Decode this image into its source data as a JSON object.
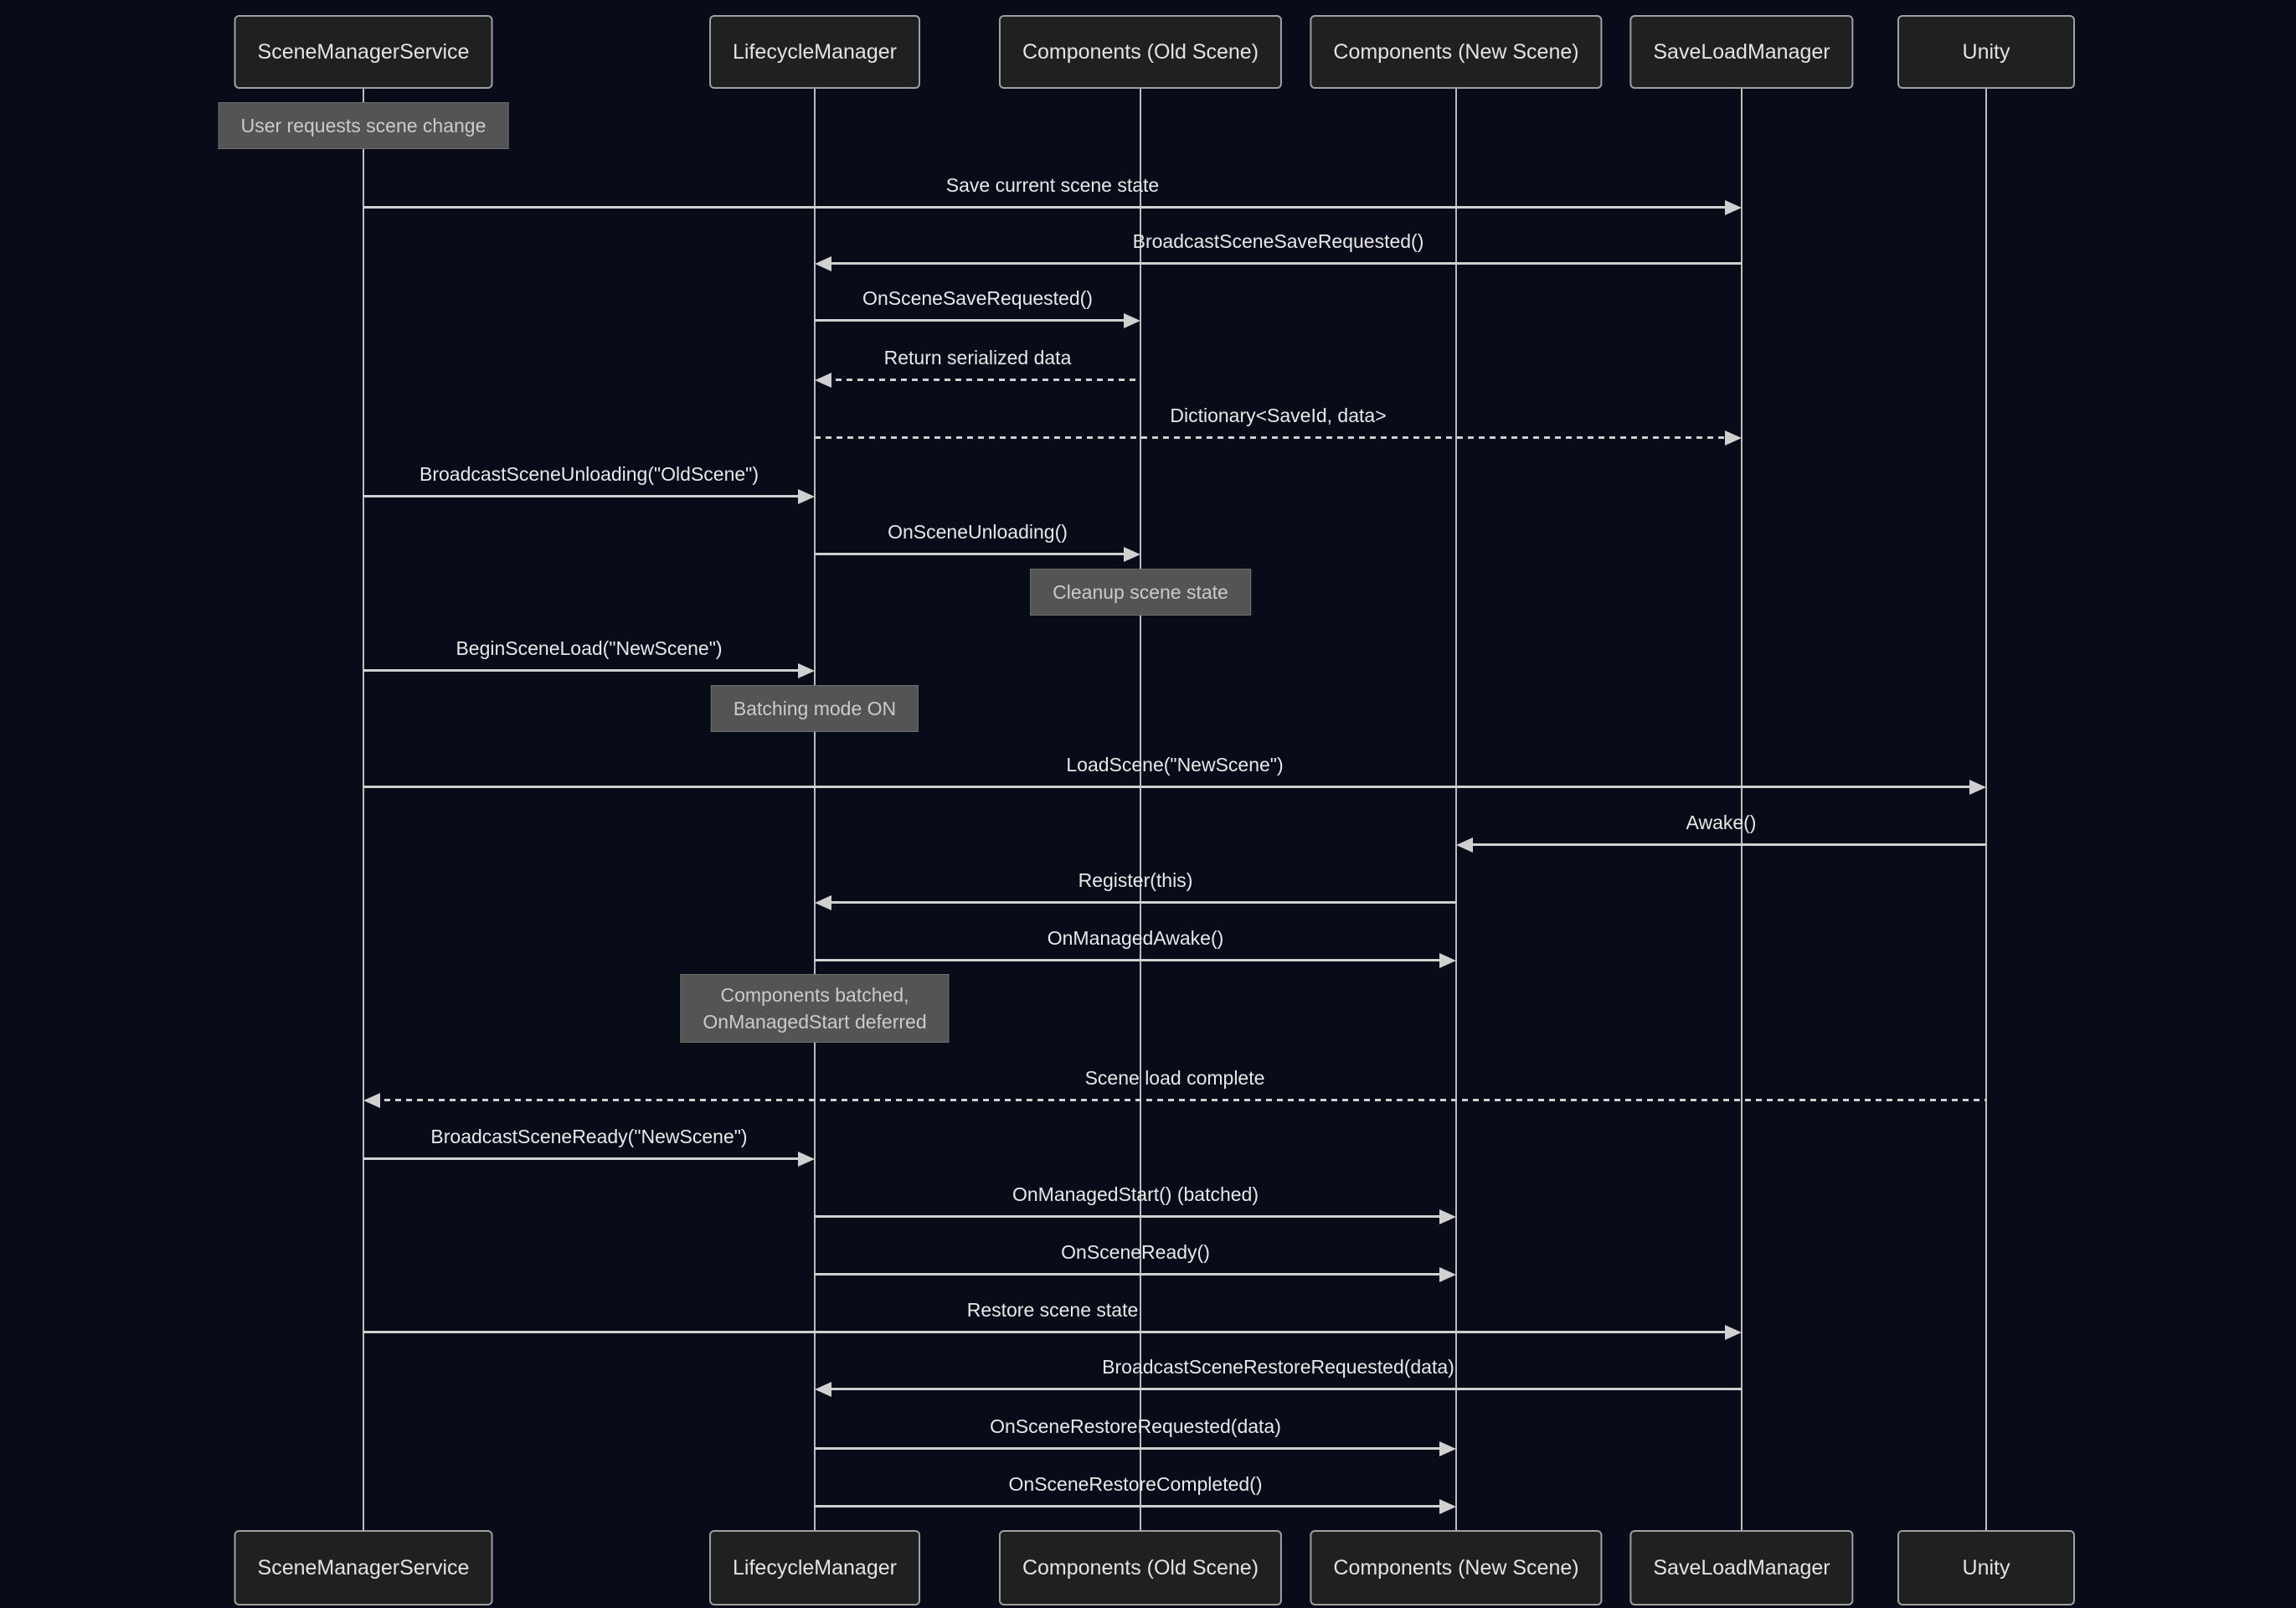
{
  "colors": {
    "bg": "#080c18",
    "actor-fill": "#1f2121",
    "actor-border": "#a0a0a0",
    "actor-text": "#e3e3e3",
    "note-fill": "#545454",
    "note-border": "#6f6f6f",
    "note-text": "#cbcbcb",
    "line": "#d0d0d0",
    "line-soft": "#bdbdbd",
    "msg-text": "#e8e8e8"
  },
  "participants": [
    {
      "id": "SceneManagerService",
      "label": "SceneManagerService"
    },
    {
      "id": "LifecycleManager",
      "label": "LifecycleManager"
    },
    {
      "id": "ComponentsOld",
      "label": "Components (Old Scene)"
    },
    {
      "id": "ComponentsNew",
      "label": "Components (New Scene)"
    },
    {
      "id": "SaveLoadManager",
      "label": "SaveLoadManager"
    },
    {
      "id": "Unity",
      "label": "Unity"
    }
  ],
  "sequence": [
    {
      "kind": "note",
      "over": "SceneManagerService",
      "label": "User requests scene change"
    },
    {
      "kind": "message",
      "from": "SceneManagerService",
      "to": "SaveLoadManager",
      "line": "solid",
      "label": "Save current scene state"
    },
    {
      "kind": "message",
      "from": "SaveLoadManager",
      "to": "LifecycleManager",
      "line": "solid",
      "label": "BroadcastSceneSaveRequested()"
    },
    {
      "kind": "message",
      "from": "LifecycleManager",
      "to": "ComponentsOld",
      "line": "solid",
      "label": "OnSceneSaveRequested()"
    },
    {
      "kind": "message",
      "from": "ComponentsOld",
      "to": "LifecycleManager",
      "line": "dashed",
      "label": "Return serialized data"
    },
    {
      "kind": "message",
      "from": "LifecycleManager",
      "to": "SaveLoadManager",
      "line": "dashed",
      "label": "Dictionary<SaveId, data>"
    },
    {
      "kind": "message",
      "from": "SceneManagerService",
      "to": "LifecycleManager",
      "line": "solid",
      "label": "BroadcastSceneUnloading(\"OldScene\")"
    },
    {
      "kind": "message",
      "from": "LifecycleManager",
      "to": "ComponentsOld",
      "line": "solid",
      "label": "OnSceneUnloading()"
    },
    {
      "kind": "note",
      "over": "ComponentsOld",
      "label": "Cleanup scene state"
    },
    {
      "kind": "message",
      "from": "SceneManagerService",
      "to": "LifecycleManager",
      "line": "solid",
      "label": "BeginSceneLoad(\"NewScene\")"
    },
    {
      "kind": "note",
      "over": "LifecycleManager",
      "label": "Batching mode ON"
    },
    {
      "kind": "message",
      "from": "SceneManagerService",
      "to": "Unity",
      "line": "solid",
      "label": "LoadScene(\"NewScene\")"
    },
    {
      "kind": "message",
      "from": "Unity",
      "to": "ComponentsNew",
      "line": "solid",
      "label": "Awake()"
    },
    {
      "kind": "message",
      "from": "ComponentsNew",
      "to": "LifecycleManager",
      "line": "solid",
      "label": "Register(this)"
    },
    {
      "kind": "message",
      "from": "LifecycleManager",
      "to": "ComponentsNew",
      "line": "solid",
      "label": "OnManagedAwake()"
    },
    {
      "kind": "note",
      "over": "LifecycleManager",
      "label": "Components batched,\nOnManagedStart deferred"
    },
    {
      "kind": "message",
      "from": "Unity",
      "to": "SceneManagerService",
      "line": "dashed",
      "label": "Scene load complete"
    },
    {
      "kind": "message",
      "from": "SceneManagerService",
      "to": "LifecycleManager",
      "line": "solid",
      "label": "BroadcastSceneReady(\"NewScene\")"
    },
    {
      "kind": "message",
      "from": "LifecycleManager",
      "to": "ComponentsNew",
      "line": "solid",
      "label": "OnManagedStart() (batched)"
    },
    {
      "kind": "message",
      "from": "LifecycleManager",
      "to": "ComponentsNew",
      "line": "solid",
      "label": "OnSceneReady()"
    },
    {
      "kind": "message",
      "from": "SceneManagerService",
      "to": "SaveLoadManager",
      "line": "solid",
      "label": "Restore scene state"
    },
    {
      "kind": "message",
      "from": "SaveLoadManager",
      "to": "LifecycleManager",
      "line": "solid",
      "label": "BroadcastSceneRestoreRequested(data)"
    },
    {
      "kind": "message",
      "from": "LifecycleManager",
      "to": "ComponentsNew",
      "line": "solid",
      "label": "OnSceneRestoreRequested(data)"
    },
    {
      "kind": "message",
      "from": "LifecycleManager",
      "to": "ComponentsNew",
      "line": "solid",
      "label": "OnSceneRestoreCompleted()"
    }
  ]
}
